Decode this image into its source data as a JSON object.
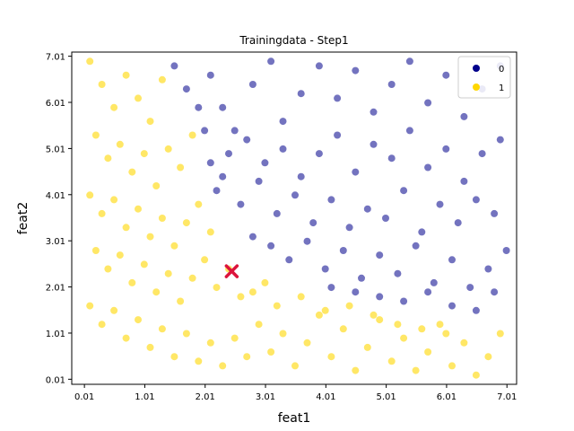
{
  "chart_data": {
    "type": "scatter",
    "title": "Trainingdata - Step1",
    "xlabel": "feat1",
    "ylabel": "feat2",
    "xlim": [
      -0.2,
      7.17
    ],
    "ylim": [
      -0.1,
      7.1
    ],
    "x_ticks": [
      0.01,
      1.01,
      2.01,
      3.01,
      4.01,
      5.01,
      6.01,
      7.01
    ],
    "x_tick_labels": [
      "0.01",
      "1.01",
      "2.01",
      "3.01",
      "4.01",
      "5.01",
      "6.01",
      "7.01"
    ],
    "y_ticks": [
      0.01,
      1.01,
      2.01,
      3.01,
      4.01,
      5.01,
      6.01,
      7.01
    ],
    "y_tick_labels": [
      "0.01",
      "1.01",
      "2.01",
      "3.01",
      "4.01",
      "5.01",
      "6.01",
      "7.01"
    ],
    "grid": false,
    "legend_position": "top-right",
    "series": [
      {
        "name": "0",
        "color": "#00008b",
        "points": [
          [
            2.1,
            6.6
          ],
          [
            2.3,
            5.9
          ],
          [
            2.5,
            5.4
          ],
          [
            2.8,
            6.4
          ],
          [
            3.1,
            6.9
          ],
          [
            3.3,
            5.6
          ],
          [
            3.6,
            6.2
          ],
          [
            3.9,
            6.8
          ],
          [
            4.2,
            6.1
          ],
          [
            4.5,
            6.7
          ],
          [
            4.8,
            5.8
          ],
          [
            5.1,
            6.4
          ],
          [
            5.4,
            6.9
          ],
          [
            5.7,
            6.0
          ],
          [
            6.0,
            6.6
          ],
          [
            6.3,
            5.7
          ],
          [
            6.6,
            6.3
          ],
          [
            6.9,
            6.8
          ],
          [
            2.4,
            4.9
          ],
          [
            2.7,
            5.2
          ],
          [
            3.0,
            4.7
          ],
          [
            3.3,
            5.0
          ],
          [
            3.6,
            4.4
          ],
          [
            3.9,
            4.9
          ],
          [
            4.2,
            5.3
          ],
          [
            4.5,
            4.5
          ],
          [
            4.8,
            5.1
          ],
          [
            5.1,
            4.8
          ],
          [
            5.4,
            5.4
          ],
          [
            5.7,
            4.6
          ],
          [
            6.0,
            5.0
          ],
          [
            6.3,
            4.3
          ],
          [
            6.6,
            4.9
          ],
          [
            6.9,
            5.2
          ],
          [
            2.2,
            4.1
          ],
          [
            2.6,
            3.8
          ],
          [
            2.9,
            4.3
          ],
          [
            3.2,
            3.6
          ],
          [
            3.5,
            4.0
          ],
          [
            3.8,
            3.4
          ],
          [
            4.1,
            3.9
          ],
          [
            4.4,
            3.3
          ],
          [
            4.7,
            3.7
          ],
          [
            5.0,
            3.5
          ],
          [
            5.3,
            4.1
          ],
          [
            5.6,
            3.2
          ],
          [
            5.9,
            3.8
          ],
          [
            6.2,
            3.4
          ],
          [
            6.5,
            3.9
          ],
          [
            6.8,
            3.6
          ],
          [
            2.8,
            3.1
          ],
          [
            3.1,
            2.9
          ],
          [
            3.4,
            2.6
          ],
          [
            3.7,
            3.0
          ],
          [
            4.0,
            2.4
          ],
          [
            4.3,
            2.8
          ],
          [
            4.6,
            2.2
          ],
          [
            4.9,
            2.7
          ],
          [
            5.2,
            2.3
          ],
          [
            5.5,
            2.9
          ],
          [
            5.8,
            2.1
          ],
          [
            6.1,
            2.6
          ],
          [
            6.4,
            2.0
          ],
          [
            6.7,
            2.4
          ],
          [
            7.0,
            2.8
          ],
          [
            4.1,
            2.0
          ],
          [
            4.5,
            1.9
          ],
          [
            4.9,
            1.8
          ],
          [
            5.3,
            1.7
          ],
          [
            5.7,
            1.9
          ],
          [
            6.1,
            1.6
          ],
          [
            6.5,
            1.5
          ],
          [
            6.8,
            1.9
          ],
          [
            1.5,
            6.8
          ],
          [
            1.7,
            6.3
          ],
          [
            1.9,
            5.9
          ],
          [
            2.0,
            5.4
          ],
          [
            2.1,
            4.7
          ],
          [
            2.3,
            4.4
          ]
        ]
      },
      {
        "name": "1",
        "color": "#ffd700",
        "points": [
          [
            0.1,
            6.9
          ],
          [
            0.3,
            6.4
          ],
          [
            0.5,
            5.9
          ],
          [
            0.7,
            6.6
          ],
          [
            0.9,
            6.1
          ],
          [
            1.1,
            5.6
          ],
          [
            1.3,
            6.5
          ],
          [
            0.2,
            5.3
          ],
          [
            0.4,
            4.8
          ],
          [
            0.6,
            5.1
          ],
          [
            0.8,
            4.5
          ],
          [
            1.0,
            4.9
          ],
          [
            1.2,
            4.2
          ],
          [
            1.4,
            5.0
          ],
          [
            1.6,
            4.6
          ],
          [
            1.8,
            5.3
          ],
          [
            0.1,
            4.0
          ],
          [
            0.3,
            3.6
          ],
          [
            0.5,
            3.9
          ],
          [
            0.7,
            3.3
          ],
          [
            0.9,
            3.7
          ],
          [
            1.1,
            3.1
          ],
          [
            1.3,
            3.5
          ],
          [
            1.5,
            2.9
          ],
          [
            1.7,
            3.4
          ],
          [
            1.9,
            3.8
          ],
          [
            2.1,
            3.2
          ],
          [
            0.2,
            2.8
          ],
          [
            0.4,
            2.4
          ],
          [
            0.6,
            2.7
          ],
          [
            0.8,
            2.1
          ],
          [
            1.0,
            2.5
          ],
          [
            1.2,
            1.9
          ],
          [
            1.4,
            2.3
          ],
          [
            1.6,
            1.7
          ],
          [
            1.8,
            2.2
          ],
          [
            2.0,
            2.6
          ],
          [
            2.2,
            2.0
          ],
          [
            2.4,
            2.4
          ],
          [
            2.6,
            1.8
          ],
          [
            0.1,
            1.6
          ],
          [
            0.3,
            1.2
          ],
          [
            0.5,
            1.5
          ],
          [
            0.7,
            0.9
          ],
          [
            0.9,
            1.3
          ],
          [
            1.1,
            0.7
          ],
          [
            1.3,
            1.1
          ],
          [
            1.5,
            0.5
          ],
          [
            1.7,
            1.0
          ],
          [
            1.9,
            0.4
          ],
          [
            2.1,
            0.8
          ],
          [
            2.3,
            0.3
          ],
          [
            2.5,
            0.9
          ],
          [
            2.7,
            0.5
          ],
          [
            2.9,
            1.2
          ],
          [
            3.1,
            0.6
          ],
          [
            3.3,
            1.0
          ],
          [
            3.5,
            0.3
          ],
          [
            3.7,
            0.8
          ],
          [
            3.9,
            1.4
          ],
          [
            4.1,
            0.5
          ],
          [
            4.3,
            1.1
          ],
          [
            4.5,
            0.2
          ],
          [
            4.7,
            0.7
          ],
          [
            4.9,
            1.3
          ],
          [
            5.1,
            0.4
          ],
          [
            5.3,
            0.9
          ],
          [
            5.5,
            0.2
          ],
          [
            5.7,
            0.6
          ],
          [
            5.9,
            1.2
          ],
          [
            6.1,
            0.3
          ],
          [
            6.3,
            0.8
          ],
          [
            6.5,
            0.1
          ],
          [
            6.7,
            0.5
          ],
          [
            6.9,
            1.0
          ],
          [
            3.2,
            1.6
          ],
          [
            3.6,
            1.8
          ],
          [
            4.0,
            1.5
          ],
          [
            4.4,
            1.6
          ],
          [
            4.8,
            1.4
          ],
          [
            5.2,
            1.2
          ],
          [
            5.6,
            1.1
          ],
          [
            6.0,
            1.0
          ],
          [
            2.8,
            1.9
          ],
          [
            3.0,
            2.1
          ]
        ]
      }
    ],
    "marker": {
      "symbol": "x",
      "x": 2.45,
      "y": 2.35,
      "color": "#dc143c"
    }
  }
}
